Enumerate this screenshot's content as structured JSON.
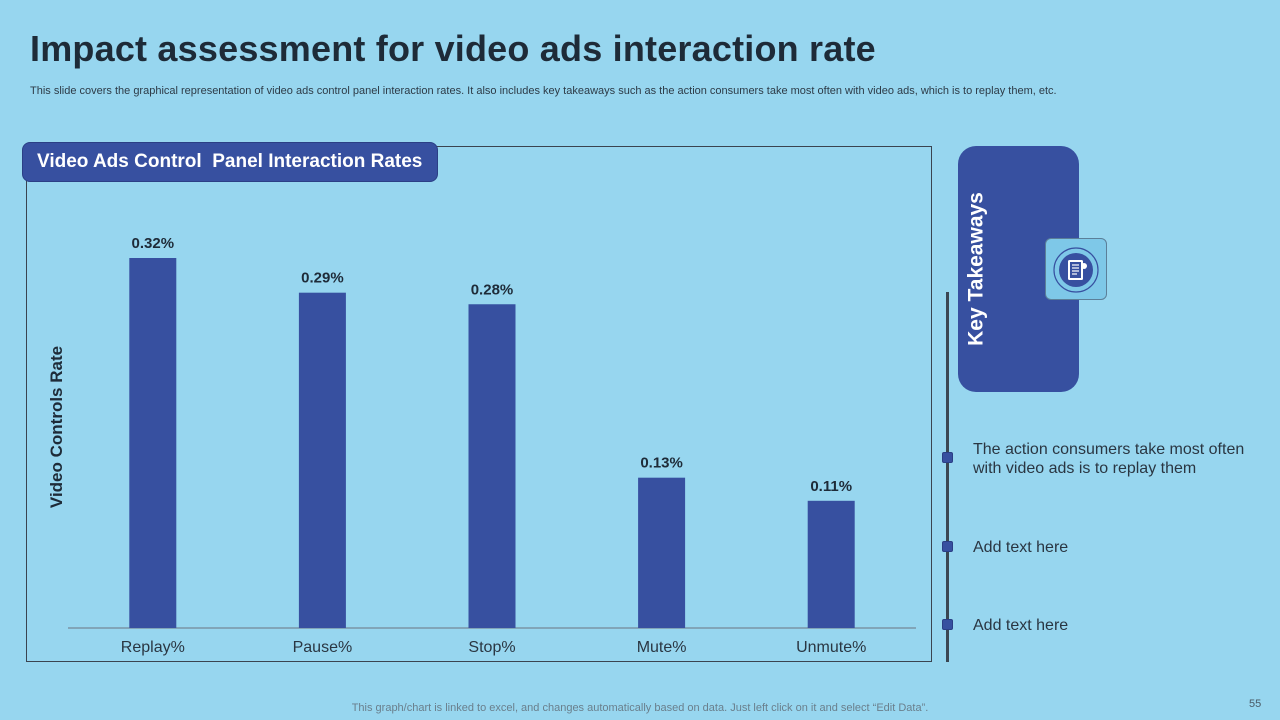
{
  "slide": {
    "title": "Impact assessment for video ads interaction rate",
    "subtitle": "This slide covers the graphical representation of video ads control panel interaction rates. It also includes key takeaways such as the action consumers take most often with video ads, which is to replay them, etc.",
    "footer_note": "This graph/chart is linked to excel,  and changes automatically based on data. Just left click on it and select “Edit Data”.",
    "page_number": "55"
  },
  "chart_header": "Video Ads Control  Panel Interaction Rates",
  "chart_data": {
    "type": "bar",
    "title": "Video Ads Control  Panel Interaction Rates",
    "xlabel": "",
    "ylabel": "Video Controls Rate",
    "categories": [
      "Replay%",
      "Pause%",
      "Stop%",
      "Mute%",
      "Unmute%"
    ],
    "values": [
      0.32,
      0.29,
      0.28,
      0.13,
      0.11
    ],
    "data_labels": [
      "0.32%",
      "0.29%",
      "0.28%",
      "0.13%",
      "0.11%"
    ],
    "ylim": [
      0,
      0.32
    ],
    "grid": false,
    "bar_color": "#3750a0"
  },
  "takeaways": {
    "heading": "Key Takeaways",
    "icon": "notebook-icon",
    "items": [
      "The action consumers take most often with video ads is to replay them",
      "Add text here",
      "Add text here"
    ]
  },
  "colors": {
    "background": "#97d6ef",
    "accent": "#3750a0"
  }
}
